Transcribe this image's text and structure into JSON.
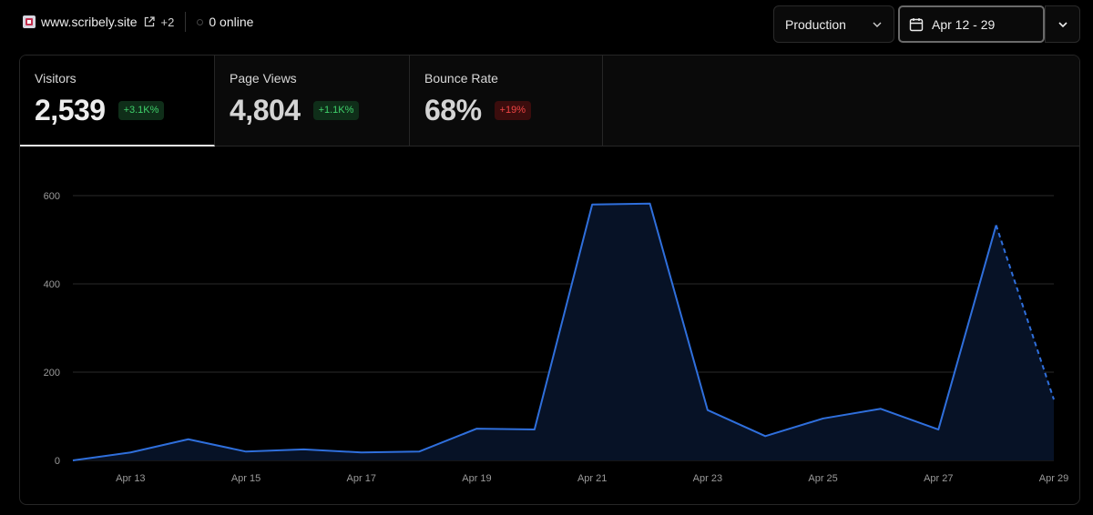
{
  "header": {
    "site_name": "www.scribely.site",
    "site_more": "+2",
    "online_text": "0 online",
    "environment": "Production",
    "date_range": "Apr 12 - 29"
  },
  "stats": [
    {
      "label": "Visitors",
      "value": "2,539",
      "change": "+3.1K%",
      "trend": "up"
    },
    {
      "label": "Page Views",
      "value": "4,804",
      "change": "+1.1K%",
      "trend": "up"
    },
    {
      "label": "Bounce Rate",
      "value": "68%",
      "change": "+19%",
      "trend": "down"
    }
  ],
  "colors": {
    "line": "#2f6fdc",
    "fill": "#071226",
    "grid": "#2a2a2a"
  },
  "chart_data": {
    "type": "area",
    "x": [
      "Apr 12",
      "Apr 13",
      "Apr 14",
      "Apr 15",
      "Apr 16",
      "Apr 17",
      "Apr 18",
      "Apr 19",
      "Apr 20",
      "Apr 21",
      "Apr 22",
      "Apr 23",
      "Apr 24",
      "Apr 25",
      "Apr 26",
      "Apr 27",
      "Apr 28",
      "Apr 29"
    ],
    "values": [
      0,
      18,
      48,
      20,
      25,
      18,
      20,
      72,
      70,
      580,
      582,
      114,
      55,
      95,
      117,
      70,
      533,
      138
    ],
    "projected_last_segment": true,
    "x_tick_labels": [
      "Apr 13",
      "Apr 15",
      "Apr 17",
      "Apr 19",
      "Apr 21",
      "Apr 23",
      "Apr 25",
      "Apr 27",
      "Apr 29"
    ],
    "y_ticks": [
      "0",
      "200",
      "400",
      "600"
    ],
    "ylim": [
      0,
      600
    ],
    "grid": true
  }
}
